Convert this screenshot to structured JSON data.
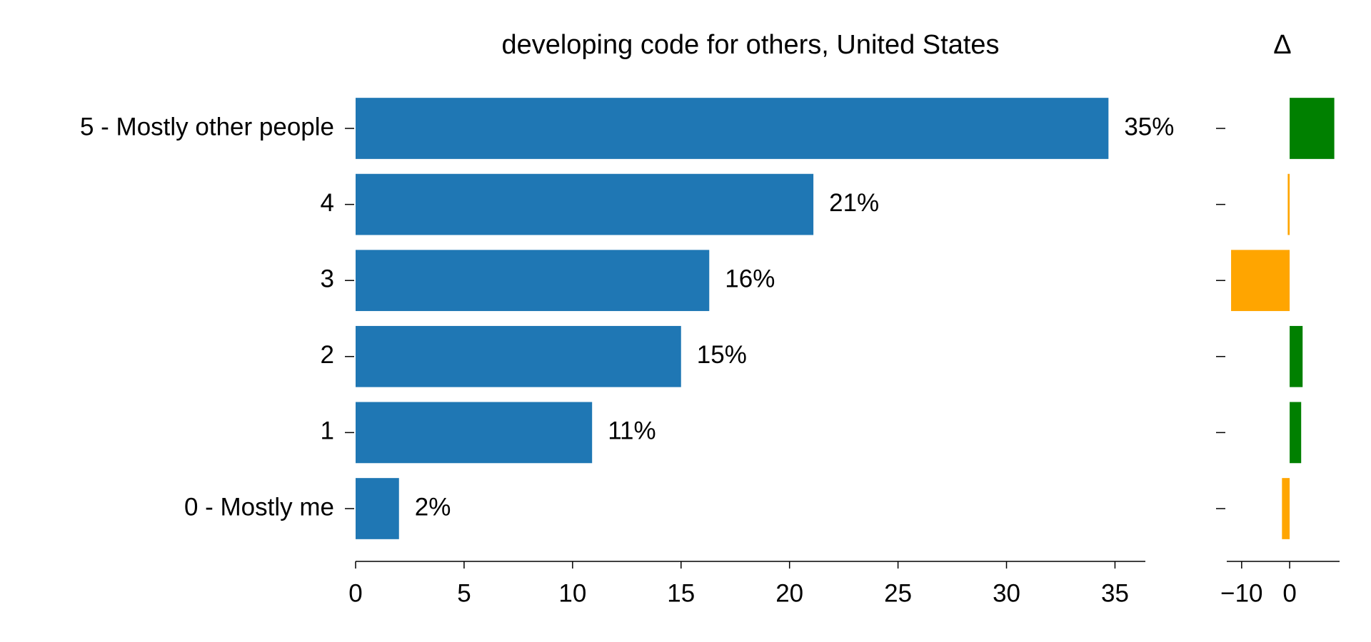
{
  "chart_data": [
    {
      "type": "barh",
      "title": "developing code for others, United States",
      "categories": [
        "5 - Mostly other people",
        "4",
        "3",
        "2",
        "1",
        "0 - Mostly me"
      ],
      "values": [
        34.7,
        21.1,
        16.3,
        15.0,
        10.9,
        2.0
      ],
      "value_labels": [
        "35%",
        "21%",
        "16%",
        "15%",
        "11%",
        "2%"
      ],
      "color": "#1f77b4",
      "xlim": [
        0,
        36.4
      ],
      "xticks": [
        0,
        5,
        10,
        15,
        20,
        25,
        30,
        35
      ]
    },
    {
      "type": "barh",
      "title": "Δ",
      "values": [
        9.3,
        -0.4,
        -12.2,
        2.7,
        2.4,
        -1.6
      ],
      "colors": [
        "#008000",
        "#ffa500",
        "#ffa500",
        "#008000",
        "#008000",
        "#ffa500"
      ],
      "xlim": [
        -13.1,
        10.4
      ],
      "xticks": [
        {
          "value": -10,
          "label": "−10"
        },
        0
      ]
    }
  ]
}
